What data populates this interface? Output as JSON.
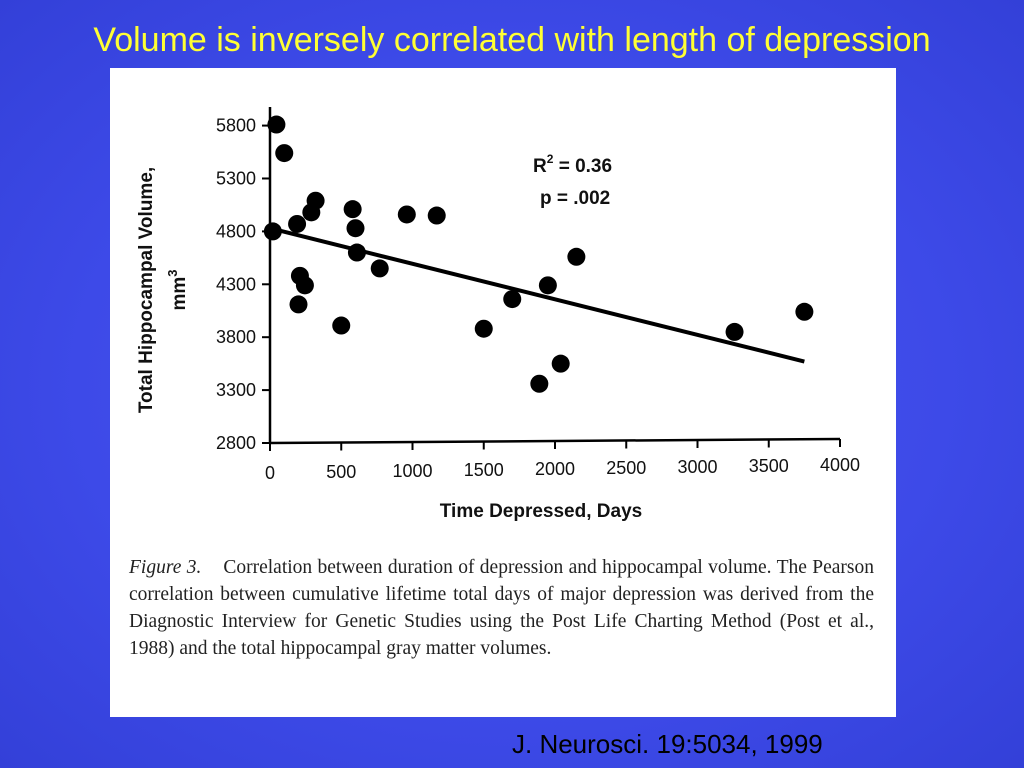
{
  "slide": {
    "title": "Volume is inversely correlated with length of depression",
    "citation": "J. Neurosci. 19:5034, 1999",
    "title_color": "#ffff33",
    "background_color": "#3d4ae8"
  },
  "chart_data": {
    "type": "scatter",
    "xlabel": "Time Depressed, Days",
    "ylabel_line1": "Total Hippocampal Volume,",
    "ylabel_line2": "mm",
    "ylabel_superscript": "3",
    "xlim": [
      0,
      4000
    ],
    "ylim": [
      2800,
      5900
    ],
    "x_ticks": [
      0,
      500,
      1000,
      1500,
      2000,
      2500,
      3000,
      3500,
      4000
    ],
    "y_ticks": [
      2800,
      3300,
      3800,
      4300,
      4800,
      5300,
      5800
    ],
    "grid": false,
    "annotation": {
      "r_label": "R",
      "r_superscript": "2",
      "r_value": " = 0.36",
      "p_label": "p = .002"
    },
    "trendline": {
      "x": [
        0,
        3750
      ],
      "y": [
        4830,
        3570
      ]
    },
    "points": [
      {
        "x": 20,
        "y": 4800
      },
      {
        "x": 45,
        "y": 5810
      },
      {
        "x": 100,
        "y": 5540
      },
      {
        "x": 190,
        "y": 4870
      },
      {
        "x": 200,
        "y": 4110
      },
      {
        "x": 210,
        "y": 4380
      },
      {
        "x": 245,
        "y": 4290
      },
      {
        "x": 290,
        "y": 4980
      },
      {
        "x": 320,
        "y": 5090
      },
      {
        "x": 500,
        "y": 3910
      },
      {
        "x": 580,
        "y": 5010
      },
      {
        "x": 600,
        "y": 4830
      },
      {
        "x": 610,
        "y": 4600
      },
      {
        "x": 770,
        "y": 4450
      },
      {
        "x": 960,
        "y": 4960
      },
      {
        "x": 1170,
        "y": 4950
      },
      {
        "x": 1500,
        "y": 3880
      },
      {
        "x": 1700,
        "y": 4160
      },
      {
        "x": 1890,
        "y": 3360
      },
      {
        "x": 1950,
        "y": 4290
      },
      {
        "x": 2040,
        "y": 3550
      },
      {
        "x": 2150,
        "y": 4560
      },
      {
        "x": 3260,
        "y": 3850
      },
      {
        "x": 3750,
        "y": 4040
      }
    ]
  },
  "caption": {
    "label": "Figure 3.",
    "text": "Correlation between duration of depression and hippocampal volume. The Pearson correlation between cumulative lifetime total days of major depression was derived from the Diagnostic Interview for Genetic Studies using the Post Life Charting Method (Post et al., 1988) and the total hippocampal gray matter volumes."
  }
}
